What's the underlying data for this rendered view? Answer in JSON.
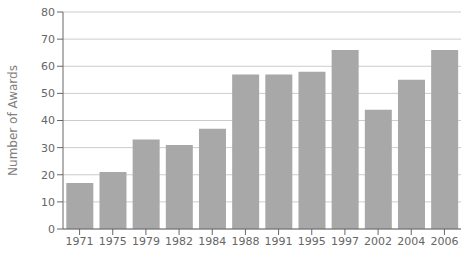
{
  "chart_data": {
    "type": "bar",
    "categories": [
      "1971",
      "1975",
      "1979",
      "1982",
      "1984",
      "1988",
      "1991",
      "1995",
      "1997",
      "2002",
      "2004",
      "2006"
    ],
    "values": [
      17,
      21,
      33,
      31,
      37,
      57,
      57,
      58,
      66,
      44,
      55,
      66
    ],
    "color": "#a8a8a8",
    "ylabel": "Number of Awards",
    "ylim": [
      0,
      80
    ],
    "yticks": [
      0,
      10,
      20,
      30,
      40,
      50,
      60,
      70,
      80
    ],
    "grid": true
  }
}
